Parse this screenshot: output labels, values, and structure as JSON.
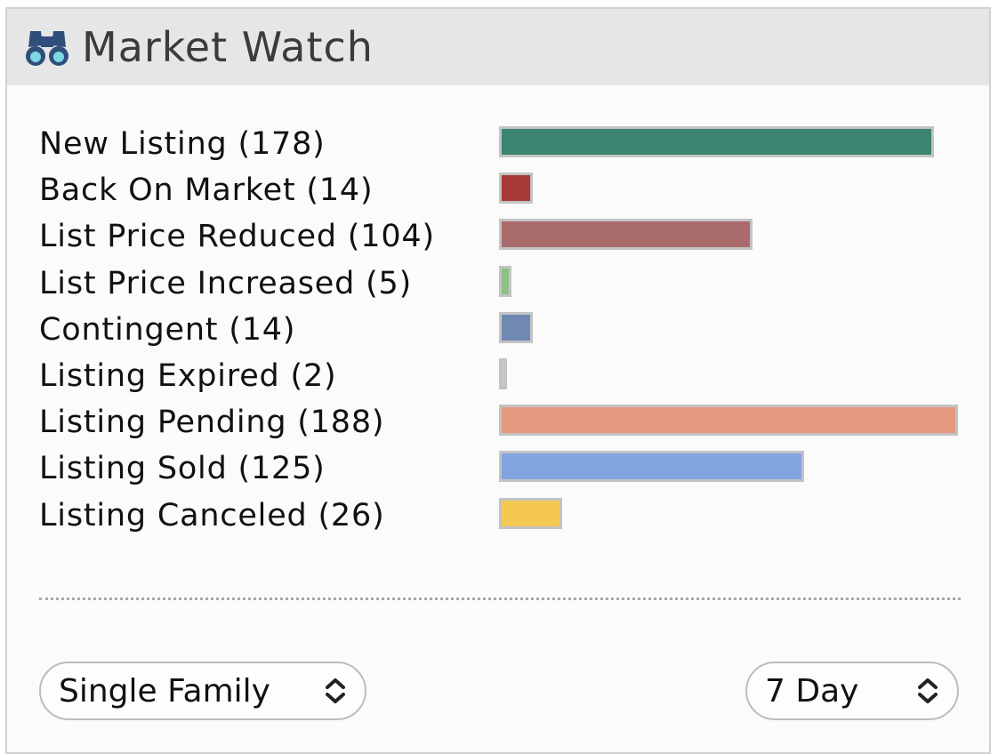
{
  "header": {
    "title": "Market Watch",
    "icon": "binoculars-icon"
  },
  "chart_data": {
    "type": "bar",
    "orientation": "horizontal",
    "categories": [
      "New Listing",
      "Back On Market",
      "List Price Reduced",
      "List Price Increased",
      "Contingent",
      "Listing Expired",
      "Listing Pending",
      "Listing Sold",
      "Listing Canceled"
    ],
    "values": [
      178,
      14,
      104,
      5,
      14,
      2,
      188,
      125,
      26
    ],
    "labels": [
      "New Listing (178)",
      "Back On Market (14)",
      "List Price Reduced (104)",
      "List Price Increased (5)",
      "Contingent (14)",
      "Listing Expired (2)",
      "Listing Pending (188)",
      "Listing Sold (125)",
      "Listing Canceled (26)"
    ],
    "colors": [
      "#3b8471",
      "#a63a38",
      "#a96a6b",
      "#8fbf85",
      "#7089b2",
      "#c7c7c7",
      "#e4997f",
      "#81a3e0",
      "#f4c851"
    ],
    "max": 188
  },
  "filters": {
    "property_type": "Single Family",
    "range": "7 Day"
  }
}
